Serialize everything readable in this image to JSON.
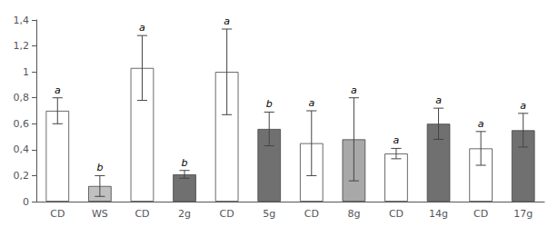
{
  "chart_data": {
    "type": "bar",
    "categories": [
      "CD",
      "WS",
      "CD",
      "2g",
      "CD",
      "5g",
      "CD",
      "8g",
      "CD",
      "14g",
      "CD",
      "17g"
    ],
    "values": [
      0.7,
      0.12,
      1.03,
      0.21,
      1.0,
      0.56,
      0.45,
      0.48,
      0.37,
      0.6,
      0.41,
      0.55
    ],
    "errors": [
      0.1,
      0.08,
      0.25,
      0.03,
      0.33,
      0.13,
      0.25,
      0.32,
      0.04,
      0.12,
      0.13,
      0.13
    ],
    "colors": [
      "white",
      "#c0c0c0",
      "white",
      "#707070",
      "white",
      "#707070",
      "white",
      "#a8a8a8",
      "white",
      "#707070",
      "white",
      "#707070"
    ],
    "annotations": [
      "a",
      "b",
      "a",
      "b",
      "a",
      "b",
      "a",
      "a",
      "a",
      "a",
      "a",
      "a"
    ],
    "ylim": [
      0,
      1.4
    ],
    "yticks": [
      0,
      {
        "value": 0.2,
        "label": "0,2"
      },
      {
        "value": 0.4,
        "label": "0,4"
      },
      {
        "value": 0.6,
        "label": "0,6"
      },
      {
        "value": 0.8,
        "label": "0,8"
      },
      1,
      {
        "value": 1.2,
        "label": "1,2"
      },
      {
        "value": 1.4,
        "label": "1,4"
      }
    ],
    "grid": false
  }
}
